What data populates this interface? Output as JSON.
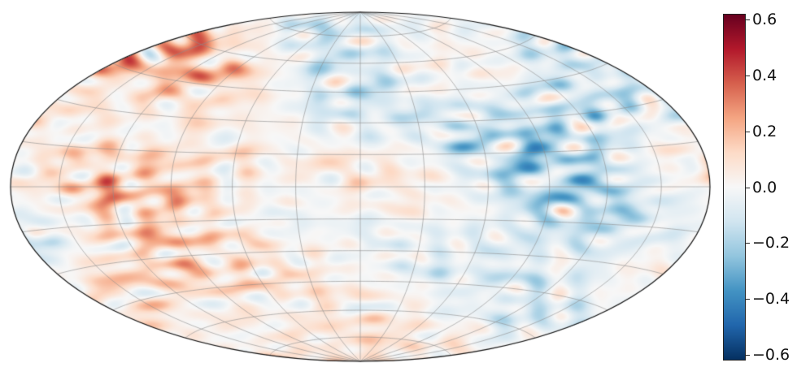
{
  "chart_data": {
    "type": "heatmap",
    "projection": "hammer",
    "graticule": {
      "meridian_step_deg": 30,
      "parallel_step_deg": 15,
      "grid": true
    },
    "colormap": "RdBu_r",
    "colorbar": {
      "range": [
        -0.62,
        0.62
      ],
      "ticks": [
        0.6,
        0.4,
        0.2,
        0.0,
        -0.2,
        -0.4,
        -0.6
      ],
      "tick_labels": [
        "0.6",
        "0.4",
        "0.2",
        "0.0",
        "−0.2",
        "−0.4",
        "−0.6"
      ]
    },
    "colors": {
      "low": "#053061",
      "mid": "#f7f7f7",
      "high": "#67001f"
    }
  }
}
